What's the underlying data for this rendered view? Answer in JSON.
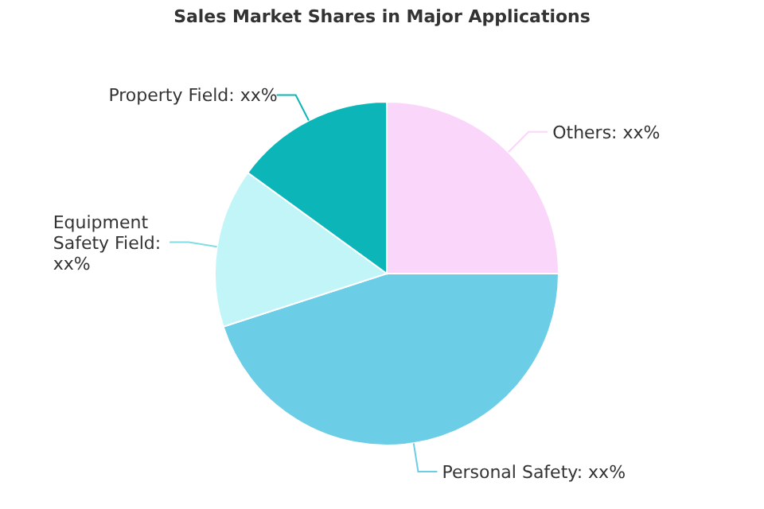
{
  "chart_data": {
    "type": "pie",
    "title": "Sales Market Shares in Major Applications",
    "categories": [
      "Others: xx%",
      "Personal Safety: xx%",
      "Equipment Safety Field: xx%",
      "Property Field: xx%"
    ],
    "values": [
      25,
      45,
      15,
      15
    ],
    "colors": [
      "#fad7fa",
      "#6ccde6",
      "#c1f5f7",
      "#0cb6b8"
    ]
  }
}
